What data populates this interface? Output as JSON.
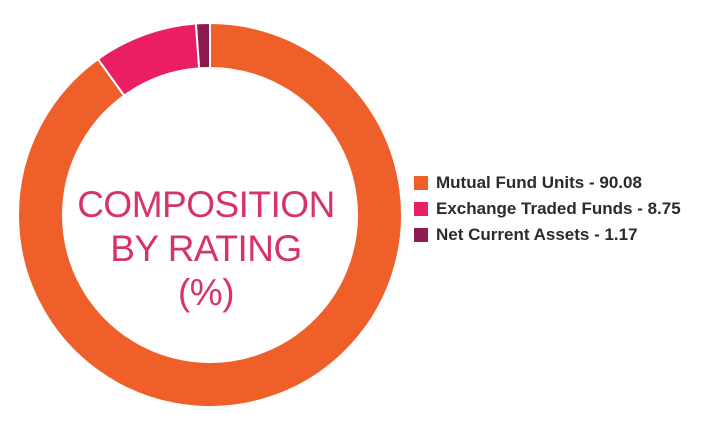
{
  "chart_data": {
    "type": "pie",
    "categories": [
      "Mutual Fund Units",
      "Exchange Traded Funds",
      "Net Current Assets"
    ],
    "values": [
      90.08,
      8.75,
      1.17
    ],
    "colors": [
      "#ef5f2a",
      "#e91e63",
      "#8e1b4f"
    ],
    "legend_labels": [
      "Mutual Fund Units - 90.08",
      "Exchange Traded Funds - 8.75",
      "Net Current Assets - 1.17"
    ],
    "center_title": [
      "COMPOSITION",
      "BY RATING",
      "(%)"
    ],
    "legend_placement": "right",
    "donut": true
  }
}
